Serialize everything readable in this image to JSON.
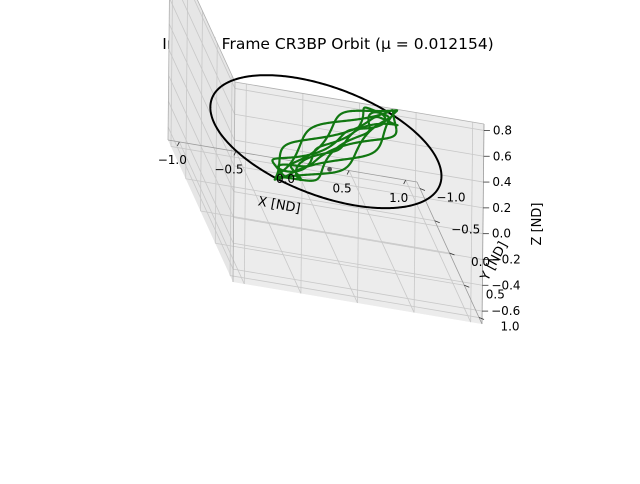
{
  "chart_data": {
    "type": "line3d",
    "title": "Inertial Frame CR3BP Orbit (μ = 0.012154)",
    "xlabel": "X [ND]",
    "ylabel": "Y [ND]",
    "zlabel": "Z [ND]",
    "xlim": [
      -1.1,
      1.1
    ],
    "ylim": [
      -1.1,
      1.1
    ],
    "zlim": [
      -0.7,
      0.85
    ],
    "xticks": [
      -1.0,
      -0.5,
      0.0,
      0.5,
      1.0
    ],
    "xtick_labels": [
      "−1.0",
      "−0.5",
      "0.0",
      "0.5",
      "1.0"
    ],
    "yticks": [
      -1.0,
      -0.5,
      0.0,
      0.5,
      1.0
    ],
    "ytick_labels": [
      "−1.0",
      "−0.5",
      "0.0",
      "0.5",
      "1.0"
    ],
    "zticks": [
      -0.6,
      -0.4,
      -0.2,
      0.0,
      0.2,
      0.4,
      0.6,
      0.8
    ],
    "ztick_labels": [
      "−0.6",
      "−0.4",
      "−0.2",
      "0.0",
      "0.2",
      "0.4",
      "0.6",
      "0.8"
    ],
    "grid": true,
    "series": [
      {
        "kind": "circle",
        "color": "#000000",
        "radius": 0.987846,
        "z": 0.0
      },
      {
        "kind": "orbit",
        "color": "#117711",
        "components": [
          {
            "r": 0.45,
            "w": 1.0,
            "phase": 0.0,
            "amp": 0.45,
            "wz": 1.0
          },
          {
            "r": 0.1,
            "w": -1.6,
            "phase": 0.8
          },
          {
            "r": 0.055,
            "w": 4.2,
            "phase": 1.9
          }
        ],
        "offset": [
          0.08,
          0.02,
          0.0
        ]
      },
      {
        "kind": "point",
        "color": "#555555",
        "x": 0.03,
        "y": 0.02,
        "z": -0.2
      }
    ]
  }
}
